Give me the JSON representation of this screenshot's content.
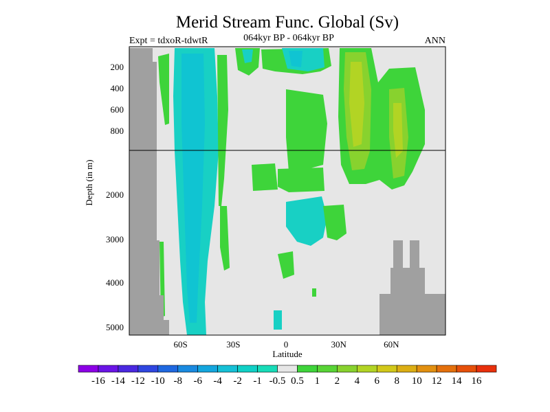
{
  "chart_data": {
    "type": "heatmap",
    "title": "Merid Stream Func. Global (Sv)",
    "subtitle_left": "Expt = tdxoR-tdwtR",
    "subtitle_center": "064kyr BP - 064kyr BP",
    "subtitle_right": "ANN",
    "xlabel": "Latitude",
    "ylabel": "Depth (in m)",
    "x_ticks": [
      {
        "label": "60S",
        "value": -60
      },
      {
        "label": "30S",
        "value": -30
      },
      {
        "label": "0",
        "value": 0
      },
      {
        "label": "30N",
        "value": 30
      },
      {
        "label": "60N",
        "value": 60
      }
    ],
    "y_ticks_upper": [
      "200",
      "400",
      "600",
      "800"
    ],
    "y_ticks_lower": [
      "2000",
      "3000",
      "4000",
      "5000"
    ],
    "colorbar": {
      "labels": [
        "-16",
        "-14",
        "-12",
        "-10",
        "-8",
        "-6",
        "-4",
        "-2",
        "-1",
        "-0.5",
        "0.5",
        "1",
        "2",
        "4",
        "6",
        "8",
        "10",
        "12",
        "14",
        "16"
      ],
      "colors": [
        "#8c00e6",
        "#6a14e6",
        "#4a28e0",
        "#2f46e0",
        "#1f68e0",
        "#1a8ae0",
        "#14a6de",
        "#16c0d6",
        "#10d0c6",
        "#18dcb8",
        "#e6e6e6",
        "#3ed43a",
        "#58d436",
        "#88d22e",
        "#b2d424",
        "#d2c81a",
        "#dcae14",
        "#e29010",
        "#e4700c",
        "#e6500a",
        "#e8300c"
      ]
    },
    "background_color": "#e6e6e6",
    "land_color": "#a0a0a0"
  }
}
